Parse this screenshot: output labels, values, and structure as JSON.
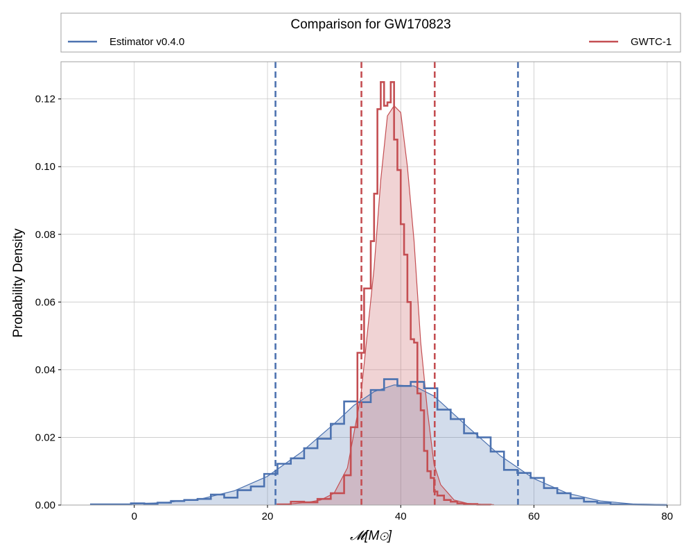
{
  "chart_data": {
    "type": "histogram",
    "title": "Comparison for GW170823",
    "xlabel": "𝓜[M⊙]",
    "ylabel": "Probability Density",
    "xlim": [
      -11,
      82
    ],
    "ylim": [
      0,
      0.131
    ],
    "x_ticks": [
      0,
      20,
      40,
      60,
      80
    ],
    "x_tick_labels": [
      "0",
      "20",
      "40",
      "60",
      "80"
    ],
    "y_ticks": [
      0.0,
      0.02,
      0.04,
      0.06,
      0.08,
      0.1,
      0.12
    ],
    "y_tick_labels": [
      "0.00",
      "0.02",
      "0.04",
      "0.06",
      "0.08",
      "0.10",
      "0.12"
    ],
    "grid": true,
    "legend_placement": "top, above plot",
    "series": [
      {
        "name": "Estimator v0.4.0",
        "color": "#4c72b0",
        "hist_edges": [
          -6.5,
          -0.5,
          1.5,
          3.5,
          5.5,
          7.5,
          9.5,
          11.5,
          13.5,
          15.5,
          17.5,
          19.5,
          21.5,
          23.5,
          25.5,
          27.5,
          29.5,
          31.5,
          33.5,
          35.5,
          37.5,
          39.5,
          41.5,
          43.5,
          45.5,
          47.5,
          49.5,
          51.5,
          53.5,
          55.5,
          57.5,
          59.5,
          61.5,
          63.5,
          65.5,
          67.5,
          69.5,
          71.5,
          73.5,
          80.0
        ],
        "hist_values": [
          0.0002,
          0.0005,
          0.0004,
          0.0007,
          0.0012,
          0.0015,
          0.0018,
          0.0031,
          0.0022,
          0.0044,
          0.0055,
          0.0092,
          0.0122,
          0.0138,
          0.0168,
          0.0196,
          0.024,
          0.0306,
          0.0304,
          0.034,
          0.0372,
          0.0352,
          0.0364,
          0.0345,
          0.0282,
          0.0254,
          0.0212,
          0.02,
          0.0158,
          0.0104,
          0.0095,
          0.008,
          0.005,
          0.0035,
          0.002,
          0.001,
          0.0006,
          0.0002
        ],
        "kde_x": [
          -6.5,
          0,
          5,
          10,
          15,
          20,
          25,
          30,
          33,
          36,
          39,
          42,
          45,
          50,
          55,
          60,
          65,
          70,
          75,
          80
        ],
        "kde_y": [
          0.0001,
          0.0003,
          0.0008,
          0.0018,
          0.0042,
          0.0085,
          0.0155,
          0.024,
          0.0295,
          0.0335,
          0.0355,
          0.0352,
          0.0322,
          0.0232,
          0.0145,
          0.0078,
          0.0035,
          0.0012,
          0.0003,
          0.0001
        ],
        "credible_interval": [
          21.2,
          57.6
        ]
      },
      {
        "name": "GWTC-1",
        "color": "#c44e52",
        "hist_edges": [
          21.5,
          23.5,
          25.5,
          27.5,
          29.5,
          31.5,
          32.5,
          33.5,
          34.5,
          35.5,
          36.0,
          36.5,
          37.0,
          37.5,
          38.0,
          38.5,
          39.0,
          39.5,
          40.0,
          40.5,
          41.0,
          41.5,
          42.0,
          42.5,
          43.0,
          43.5,
          44.0,
          44.5,
          45.0,
          45.5,
          46.5,
          47.5,
          48.5,
          49.5,
          51.5,
          53.5
        ],
        "hist_values": [
          0.0002,
          0.001,
          0.0008,
          0.0018,
          0.0035,
          0.0088,
          0.023,
          0.045,
          0.064,
          0.078,
          0.092,
          0.117,
          0.125,
          0.118,
          0.119,
          0.125,
          0.108,
          0.099,
          0.083,
          0.074,
          0.06,
          0.049,
          0.048,
          0.033,
          0.028,
          0.016,
          0.01,
          0.008,
          0.004,
          0.0028,
          0.0015,
          0.001,
          0.0005,
          0.0003,
          0.0001
        ],
        "kde_x": [
          22,
          26,
          28,
          30,
          32,
          34,
          36,
          37,
          38,
          39,
          40,
          41,
          42,
          43,
          44,
          45,
          46,
          48,
          50,
          52,
          54
        ],
        "kde_y": [
          0.0001,
          0.0008,
          0.0015,
          0.0035,
          0.011,
          0.032,
          0.07,
          0.096,
          0.115,
          0.118,
          0.116,
          0.1,
          0.078,
          0.048,
          0.028,
          0.012,
          0.006,
          0.0015,
          0.0005,
          0.0002,
          0.0001
        ],
        "credible_interval": [
          34.1,
          45.1
        ]
      }
    ]
  }
}
